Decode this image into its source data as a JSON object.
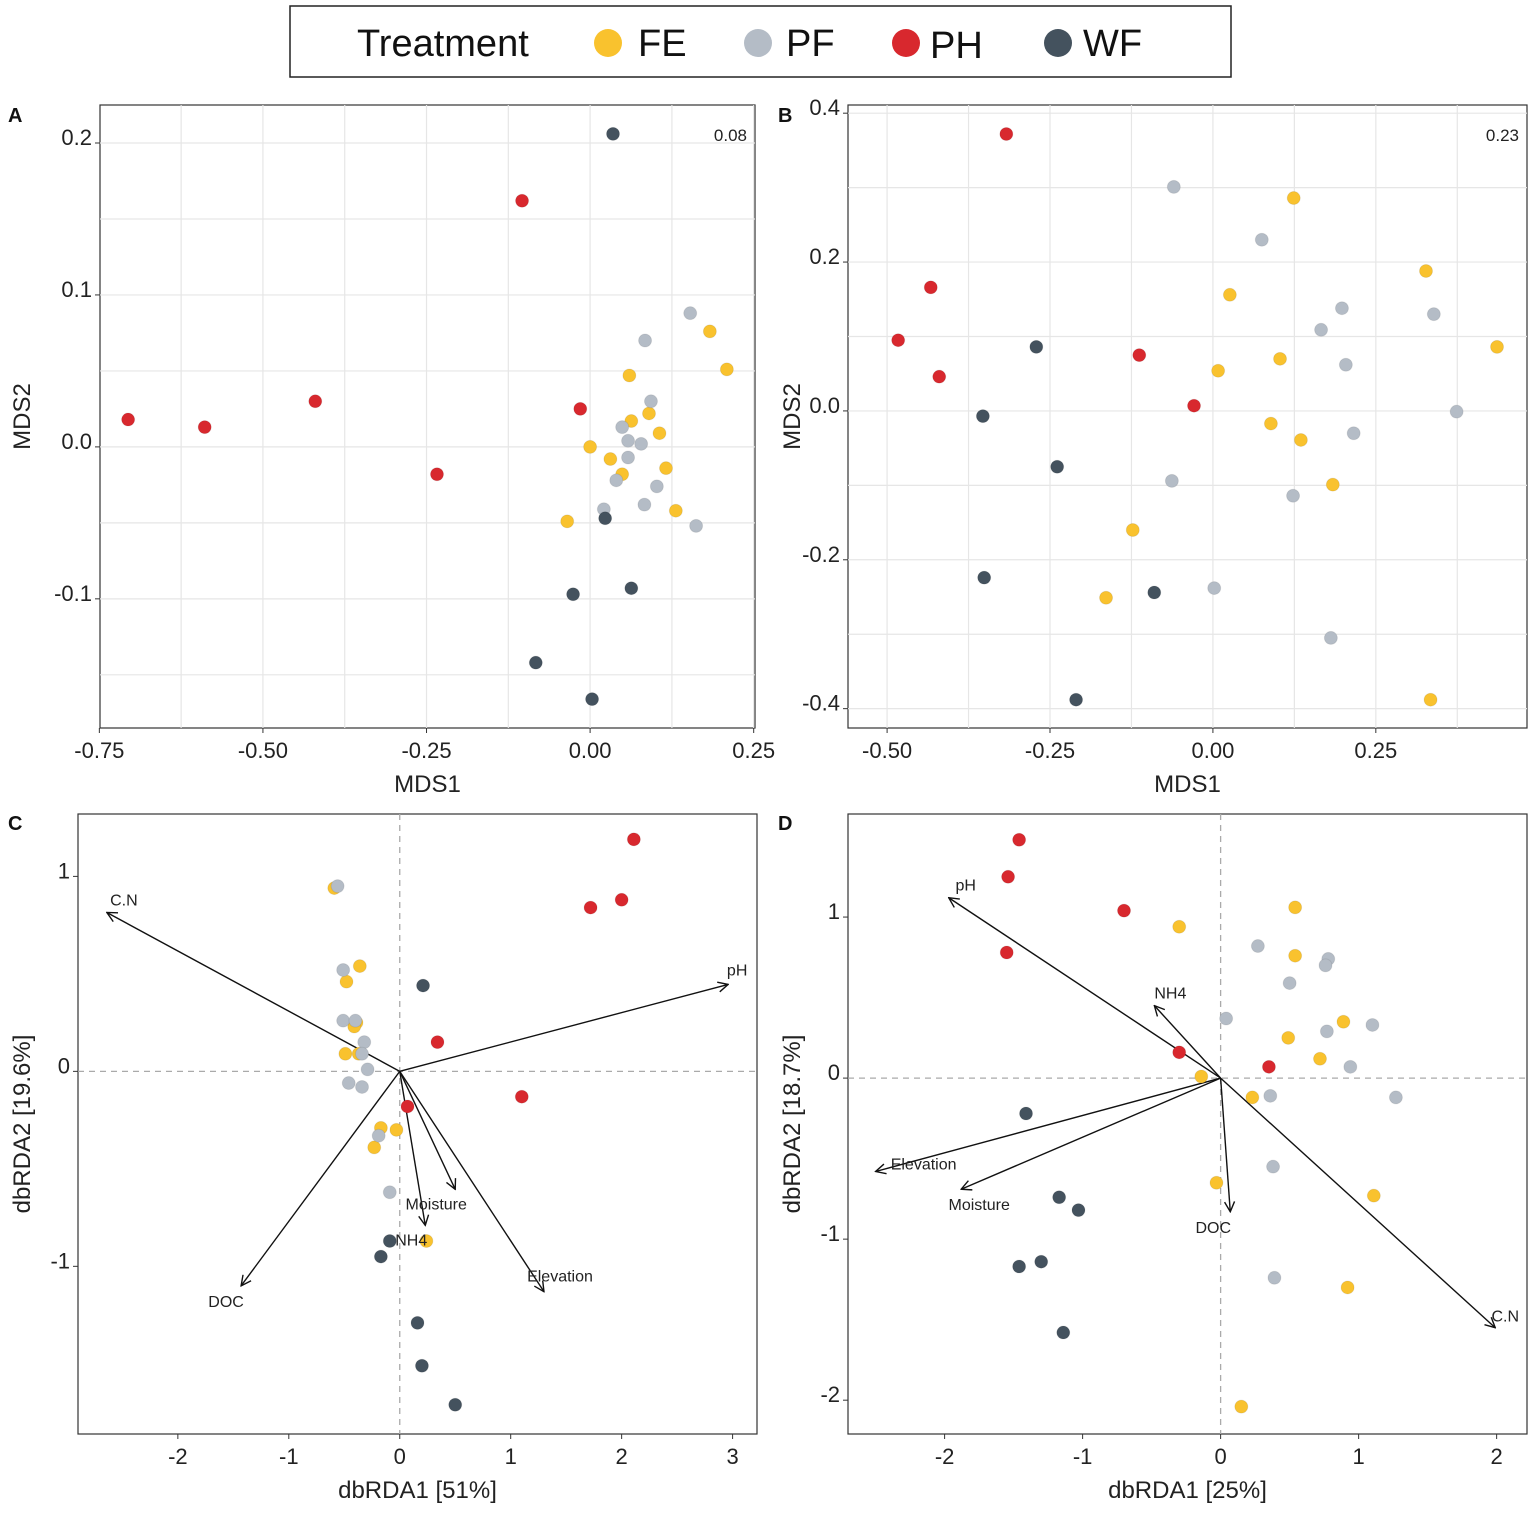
{
  "legend": {
    "title": "Treatment",
    "items": [
      {
        "label": "FE",
        "color": "#F9C22E"
      },
      {
        "label": "PF",
        "color": "#B4BCC6"
      },
      {
        "label": "PH",
        "color": "#D8282E"
      },
      {
        "label": "WF",
        "color": "#44525E"
      }
    ]
  },
  "chart_data": [
    {
      "panel": "A",
      "type": "scatter",
      "annotation": "0.08",
      "xlabel": "MDS1",
      "ylabel": "MDS2",
      "xlim": [
        -0.749,
        0.252
      ],
      "ylim": [
        -0.185,
        0.225
      ],
      "grid": true,
      "xticks": [
        {
          "v": -0.75,
          "label": "-0.75"
        },
        {
          "v": -0.5,
          "label": "-0.50"
        },
        {
          "v": -0.25,
          "label": "-0.25"
        },
        {
          "v": 0,
          "label": "0.00"
        },
        {
          "v": 0.25,
          "label": "0.25"
        }
      ],
      "yticks": [
        {
          "v": 0.2,
          "label": "0.2"
        },
        {
          "v": 0.1,
          "label": "0.1"
        },
        {
          "v": 0,
          "label": "0.0"
        },
        {
          "v": -0.1,
          "label": "-0.1"
        }
      ],
      "series": [
        {
          "name": "FE",
          "points": [
            [
              0.183,
              0.076
            ],
            [
              0.209,
              0.051
            ],
            [
              0.06,
              0.047
            ],
            [
              0.09,
              0.022
            ],
            [
              0.063,
              0.017
            ],
            [
              0.106,
              0.009
            ],
            [
              0.0,
              0.0
            ],
            [
              0.031,
              -0.008
            ],
            [
              0.116,
              -0.014
            ],
            [
              0.049,
              -0.018
            ],
            [
              0.131,
              -0.042
            ],
            [
              -0.035,
              -0.049
            ]
          ]
        },
        {
          "name": "PF",
          "points": [
            [
              0.153,
              0.088
            ],
            [
              0.084,
              0.07
            ],
            [
              0.093,
              0.03
            ],
            [
              0.049,
              0.013
            ],
            [
              0.058,
              0.004
            ],
            [
              0.078,
              0.002
            ],
            [
              0.058,
              -0.007
            ],
            [
              0.04,
              -0.022
            ],
            [
              0.102,
              -0.026
            ],
            [
              0.021,
              -0.041
            ],
            [
              0.083,
              -0.038
            ],
            [
              0.162,
              -0.052
            ]
          ]
        },
        {
          "name": "PH",
          "points": [
            [
              -0.104,
              0.162
            ],
            [
              -0.706,
              0.018
            ],
            [
              -0.589,
              0.013
            ],
            [
              -0.42,
              0.03
            ],
            [
              -0.234,
              -0.018
            ],
            [
              -0.015,
              0.025
            ]
          ]
        },
        {
          "name": "WF",
          "points": [
            [
              0.035,
              0.206
            ],
            [
              0.023,
              -0.047
            ],
            [
              -0.026,
              -0.097
            ],
            [
              0.063,
              -0.093
            ],
            [
              -0.083,
              -0.142
            ],
            [
              0.003,
              -0.166
            ]
          ]
        }
      ]
    },
    {
      "panel": "B",
      "type": "scatter",
      "annotation": "0.23",
      "xlabel": "MDS1",
      "ylabel": "MDS2",
      "xlim": [
        -0.56,
        0.482
      ],
      "ylim": [
        -0.426,
        0.411
      ],
      "grid": true,
      "xticks": [
        {
          "v": -0.5,
          "label": "-0.50"
        },
        {
          "v": -0.25,
          "label": "-0.25"
        },
        {
          "v": 0,
          "label": "0.00"
        },
        {
          "v": 0.25,
          "label": "0.25"
        }
      ],
      "yticks": [
        {
          "v": 0.4,
          "label": "0.4"
        },
        {
          "v": 0.2,
          "label": "0.2"
        },
        {
          "v": 0,
          "label": "0.0"
        },
        {
          "v": -0.2,
          "label": "-0.2"
        },
        {
          "v": -0.4,
          "label": "-0.4"
        }
      ],
      "series": [
        {
          "name": "FE",
          "points": [
            [
              0.124,
              0.286
            ],
            [
              0.327,
              0.188
            ],
            [
              0.026,
              0.156
            ],
            [
              0.436,
              0.086
            ],
            [
              0.103,
              0.07
            ],
            [
              0.008,
              0.054
            ],
            [
              0.089,
              -0.017
            ],
            [
              0.135,
              -0.039
            ],
            [
              0.184,
              -0.099
            ],
            [
              -0.123,
              -0.16
            ],
            [
              -0.164,
              -0.251
            ],
            [
              0.334,
              -0.388
            ]
          ]
        },
        {
          "name": "PF",
          "points": [
            [
              -0.06,
              0.301
            ],
            [
              0.075,
              0.23
            ],
            [
              0.198,
              0.138
            ],
            [
              0.339,
              0.13
            ],
            [
              0.166,
              0.109
            ],
            [
              0.204,
              0.062
            ],
            [
              0.374,
              -0.001
            ],
            [
              0.216,
              -0.03
            ],
            [
              -0.063,
              -0.094
            ],
            [
              0.123,
              -0.114
            ],
            [
              0.002,
              -0.238
            ],
            [
              0.181,
              -0.305
            ]
          ]
        },
        {
          "name": "PH",
          "points": [
            [
              -0.317,
              0.372
            ],
            [
              -0.433,
              0.166
            ],
            [
              -0.483,
              0.095
            ],
            [
              -0.42,
              0.046
            ],
            [
              -0.113,
              0.075
            ],
            [
              -0.029,
              0.007
            ]
          ]
        },
        {
          "name": "WF",
          "points": [
            [
              -0.271,
              0.086
            ],
            [
              -0.353,
              -0.007
            ],
            [
              -0.239,
              -0.075
            ],
            [
              -0.351,
              -0.224
            ],
            [
              -0.09,
              -0.244
            ],
            [
              -0.21,
              -0.388
            ]
          ]
        }
      ]
    },
    {
      "panel": "C",
      "type": "scatter",
      "xlabel": "dbRDA1 [51%]",
      "ylabel": "dbRDA2 [19.6%]",
      "xlim": [
        -2.9,
        3.22
      ],
      "ylim": [
        -1.86,
        1.32
      ],
      "grid": false,
      "xticks": [
        {
          "v": -2,
          "label": "-2"
        },
        {
          "v": -1,
          "label": "-1"
        },
        {
          "v": 0,
          "label": "0"
        },
        {
          "v": 1,
          "label": "1"
        },
        {
          "v": 2,
          "label": "2"
        },
        {
          "v": 3,
          "label": "3"
        }
      ],
      "yticks": [
        {
          "v": 1,
          "label": "1"
        },
        {
          "v": 0,
          "label": "0"
        },
        {
          "v": -1,
          "label": "-1"
        }
      ],
      "arrows": [
        {
          "label": "C.N",
          "x": -2.64,
          "y": 0.815
        },
        {
          "label": "pH",
          "x": 2.96,
          "y": 0.446
        },
        {
          "label": "Moisture",
          "x": 0.5,
          "y": -0.605
        },
        {
          "label": "NH4",
          "x": 0.23,
          "y": -0.79
        },
        {
          "label": "Elevation",
          "x": 1.3,
          "y": -1.13
        },
        {
          "label": "DOC",
          "x": -1.43,
          "y": -1.1
        }
      ],
      "series": [
        {
          "name": "FE",
          "points": [
            [
              -0.59,
              0.94
            ],
            [
              -0.36,
              0.54
            ],
            [
              -0.48,
              0.46
            ],
            [
              -0.39,
              0.25
            ],
            [
              -0.41,
              0.23
            ],
            [
              -0.49,
              0.09
            ],
            [
              -0.37,
              0.09
            ],
            [
              -0.17,
              -0.29
            ],
            [
              -0.03,
              -0.3
            ],
            [
              -0.23,
              -0.39
            ],
            [
              0.24,
              -0.87
            ]
          ]
        },
        {
          "name": "PF",
          "points": [
            [
              -0.56,
              0.95
            ],
            [
              -0.51,
              0.52
            ],
            [
              -0.51,
              0.26
            ],
            [
              -0.4,
              0.26
            ],
            [
              -0.32,
              0.15
            ],
            [
              -0.34,
              0.09
            ],
            [
              -0.29,
              0.01
            ],
            [
              -0.46,
              -0.06
            ],
            [
              -0.34,
              -0.08
            ],
            [
              -0.19,
              -0.33
            ],
            [
              -0.09,
              -0.62
            ]
          ]
        },
        {
          "name": "PH",
          "points": [
            [
              2.11,
              1.19
            ],
            [
              2.0,
              0.88
            ],
            [
              1.72,
              0.84
            ],
            [
              0.34,
              0.15
            ],
            [
              1.1,
              -0.13
            ],
            [
              0.07,
              -0.18
            ]
          ]
        },
        {
          "name": "WF",
          "points": [
            [
              0.21,
              0.44
            ],
            [
              -0.09,
              -0.87
            ],
            [
              -0.17,
              -0.95
            ],
            [
              0.16,
              -1.29
            ],
            [
              0.2,
              -1.51
            ],
            [
              0.5,
              -1.71
            ]
          ]
        }
      ]
    },
    {
      "panel": "D",
      "type": "scatter",
      "xlabel": "dbRDA1 [25%]",
      "ylabel": "dbRDA2 [18.7%]",
      "xlim": [
        -2.7,
        2.22
      ],
      "ylim": [
        -2.21,
        1.64
      ],
      "grid": false,
      "xticks": [
        {
          "v": -2,
          "label": "-2"
        },
        {
          "v": -1,
          "label": "-1"
        },
        {
          "v": 0,
          "label": "0"
        },
        {
          "v": 1,
          "label": "1"
        },
        {
          "v": 2,
          "label": "2"
        }
      ],
      "yticks": [
        {
          "v": 1,
          "label": "1"
        },
        {
          "v": 0,
          "label": "0"
        },
        {
          "v": -1,
          "label": "-1"
        },
        {
          "v": -2,
          "label": "-2"
        }
      ],
      "arrows": [
        {
          "label": "pH",
          "x": -1.97,
          "y": 1.12
        },
        {
          "label": "NH4",
          "x": -0.48,
          "y": 0.45
        },
        {
          "label": "Elevation",
          "x": -2.5,
          "y": -0.58
        },
        {
          "label": "Moisture",
          "x": -1.88,
          "y": -0.69
        },
        {
          "label": "DOC",
          "x": 0.07,
          "y": -0.83
        },
        {
          "label": "C.N",
          "x": 1.99,
          "y": -1.55
        }
      ],
      "series": [
        {
          "name": "FE",
          "points": [
            [
              -0.3,
              0.94
            ],
            [
              0.54,
              1.06
            ],
            [
              0.54,
              0.76
            ],
            [
              0.89,
              0.35
            ],
            [
              0.49,
              0.25
            ],
            [
              0.72,
              0.12
            ],
            [
              -0.14,
              0.01
            ],
            [
              0.23,
              -0.12
            ],
            [
              -0.03,
              -0.65
            ],
            [
              1.11,
              -0.73
            ],
            [
              0.92,
              -1.3
            ],
            [
              0.15,
              -2.04
            ]
          ]
        },
        {
          "name": "PF",
          "points": [
            [
              0.27,
              0.82
            ],
            [
              0.78,
              0.74
            ],
            [
              0.76,
              0.7
            ],
            [
              0.5,
              0.59
            ],
            [
              0.04,
              0.37
            ],
            [
              1.1,
              0.33
            ],
            [
              0.77,
              0.29
            ],
            [
              0.94,
              0.07
            ],
            [
              0.36,
              -0.11
            ],
            [
              1.27,
              -0.12
            ],
            [
              0.38,
              -0.55
            ],
            [
              0.39,
              -1.24
            ]
          ]
        },
        {
          "name": "PH",
          "points": [
            [
              -1.46,
              1.48
            ],
            [
              -1.54,
              1.25
            ],
            [
              -0.7,
              1.04
            ],
            [
              -1.55,
              0.78
            ],
            [
              -0.3,
              0.16
            ],
            [
              0.35,
              0.07
            ]
          ]
        },
        {
          "name": "WF",
          "points": [
            [
              -1.41,
              -0.22
            ],
            [
              -1.17,
              -0.74
            ],
            [
              -1.03,
              -0.82
            ],
            [
              -1.46,
              -1.17
            ],
            [
              -1.3,
              -1.14
            ],
            [
              -1.14,
              -1.58
            ]
          ]
        }
      ]
    }
  ]
}
